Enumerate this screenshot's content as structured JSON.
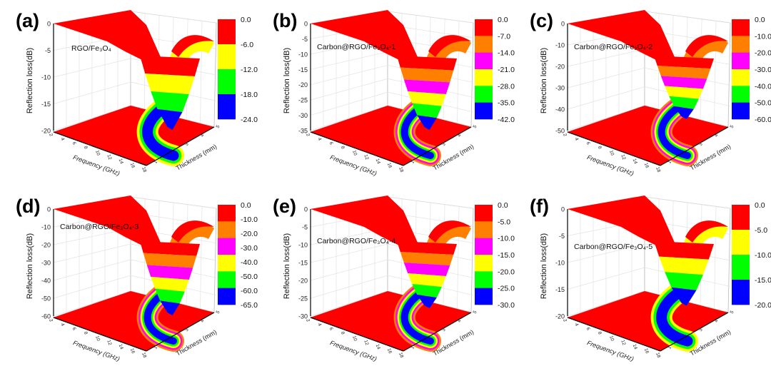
{
  "axes": {
    "z_label": "Reflection loss(dB)",
    "x_label": "Frequency (GHz)",
    "y_label": "Thickness (mm)",
    "freq_ticks": [
      "2",
      "4",
      "6",
      "8",
      "10",
      "12",
      "14",
      "16",
      "18"
    ],
    "thick_ticks": [
      "1",
      "2",
      "3",
      "4",
      "5"
    ]
  },
  "chart_data": [
    {
      "type": "surface3d",
      "panel": "(a)",
      "sample": "RGO/Fe₃O₄",
      "z_ticks": [
        "0",
        "-5",
        "-10",
        "-15",
        "-20"
      ],
      "zlim": [
        -20,
        0
      ],
      "legend_levels": [
        "0.0",
        "-6.0",
        "-12.0",
        "-18.0",
        "-24.0"
      ],
      "legend_colors": [
        "#ff0000",
        "#ffff00",
        "#00ff00",
        "#0000ff"
      ],
      "min_rl": -24
    },
    {
      "type": "surface3d",
      "panel": "(b)",
      "sample": "Carbon@RGO/Fe₃O₄-1",
      "z_ticks": [
        "0",
        "-5",
        "-10",
        "-15",
        "-20",
        "-25",
        "-30",
        "-35"
      ],
      "zlim": [
        -35,
        0
      ],
      "legend_levels": [
        "0.0",
        "-7.0",
        "-14.0",
        "-21.0",
        "-28.0",
        "-35.0",
        "-42.0"
      ],
      "legend_colors": [
        "#ff0000",
        "#ff8000",
        "#ff00ff",
        "#ffff00",
        "#00ff00",
        "#0000ff"
      ],
      "min_rl": -35
    },
    {
      "type": "surface3d",
      "panel": "(c)",
      "sample": "Carbon@RGO/Fe₃O₄-2",
      "z_ticks": [
        "0",
        "-10",
        "-20",
        "-30",
        "-40",
        "-50"
      ],
      "zlim": [
        -50,
        0
      ],
      "legend_levels": [
        "0.0",
        "-10.0",
        "-20.0",
        "-30.0",
        "-40.0",
        "-50.0",
        "-60.0"
      ],
      "legend_colors": [
        "#ff0000",
        "#ff8000",
        "#ff00ff",
        "#ffff00",
        "#00ff00",
        "#0000ff"
      ],
      "min_rl": -45
    },
    {
      "type": "surface3d",
      "panel": "(d)",
      "sample": "Carbon@RGO/Fe₃O₄-3",
      "z_ticks": [
        "0",
        "-10",
        "-20",
        "-30",
        "-40",
        "-50",
        "-60"
      ],
      "zlim": [
        -60,
        0
      ],
      "legend_levels": [
        "0.0",
        "-10.0",
        "-20.0",
        "-30.0",
        "-40.0",
        "-50.0",
        "-60.0",
        "-65.0"
      ],
      "legend_colors": [
        "#ff0000",
        "#ff8000",
        "#ff00ff",
        "#ffff00",
        "#00ff00",
        "#0000ff"
      ],
      "min_rl": -62
    },
    {
      "type": "surface3d",
      "panel": "(e)",
      "sample": "Carbon@RGO/Fe₃O₄-4",
      "z_ticks": [
        "0",
        "-5",
        "-10",
        "-15",
        "-20",
        "-25",
        "-30"
      ],
      "zlim": [
        -30,
        0
      ],
      "legend_levels": [
        "0.0",
        "-5.0",
        "-10.0",
        "-15.0",
        "-20.0",
        "-25.0",
        "-30.0"
      ],
      "legend_colors": [
        "#ff0000",
        "#ff8000",
        "#ff00ff",
        "#ffff00",
        "#00ff00",
        "#0000ff"
      ],
      "min_rl": -28
    },
    {
      "type": "surface3d",
      "panel": "(f)",
      "sample": "Carbon@RGO/Fe₃O₄-5",
      "z_ticks": [
        "0",
        "-5",
        "-10",
        "-15",
        "-20"
      ],
      "zlim": [
        -22,
        0
      ],
      "legend_levels": [
        "0.0",
        "-5.0",
        "-10.0",
        "-15.0",
        "-20.0"
      ],
      "legend_colors": [
        "#ff0000",
        "#ffff00",
        "#00ff00",
        "#0000ff"
      ],
      "min_rl": -20
    }
  ]
}
